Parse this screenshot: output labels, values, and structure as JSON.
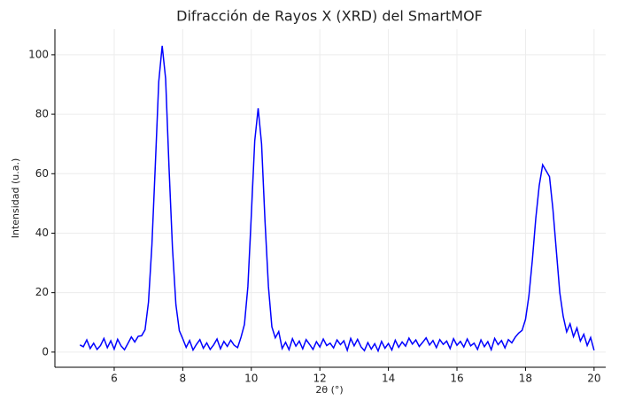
{
  "chart_data": {
    "type": "line",
    "title": "Difracción de Rayos X (XRD) del SmartMOF",
    "xlabel": "2θ (°)",
    "ylabel": "Intensidad (u.a.)",
    "xlim": [
      4.27,
      20.34
    ],
    "ylim": [
      -5.1,
      108.6
    ],
    "xticks": [
      6,
      8,
      10,
      12,
      14,
      16,
      18,
      20
    ],
    "yticks": [
      0,
      20,
      40,
      60,
      80,
      100
    ],
    "grid": true,
    "x": [
      5.0,
      5.1,
      5.2,
      5.3,
      5.4,
      5.5,
      5.6,
      5.7,
      5.8,
      5.9,
      6.0,
      6.1,
      6.2,
      6.3,
      6.4,
      6.5,
      6.6,
      6.7,
      6.8,
      6.9,
      7.0,
      7.1,
      7.2,
      7.3,
      7.4,
      7.5,
      7.6,
      7.7,
      7.8,
      7.9,
      8.0,
      8.1,
      8.2,
      8.3,
      8.4,
      8.5,
      8.6,
      8.7,
      8.8,
      8.9,
      9.0,
      9.1,
      9.2,
      9.3,
      9.4,
      9.5,
      9.6,
      9.7,
      9.8,
      9.9,
      10.0,
      10.1,
      10.2,
      10.3,
      10.4,
      10.5,
      10.6,
      10.7,
      10.8,
      10.9,
      11.0,
      11.1,
      11.2,
      11.3,
      11.4,
      11.5,
      11.6,
      11.7,
      11.8,
      11.9,
      12.0,
      12.1,
      12.2,
      12.3,
      12.4,
      12.5,
      12.6,
      12.7,
      12.8,
      12.9,
      13.0,
      13.1,
      13.2,
      13.3,
      13.4,
      13.5,
      13.6,
      13.7,
      13.8,
      13.9,
      14.0,
      14.1,
      14.2,
      14.3,
      14.4,
      14.5,
      14.6,
      14.7,
      14.8,
      14.9,
      15.0,
      15.1,
      15.2,
      15.3,
      15.4,
      15.5,
      15.6,
      15.7,
      15.8,
      15.9,
      16.0,
      16.1,
      16.2,
      16.3,
      16.4,
      16.5,
      16.6,
      16.7,
      16.8,
      16.9,
      17.0,
      17.1,
      17.2,
      17.3,
      17.4,
      17.5,
      17.6,
      17.7,
      17.8,
      17.9,
      18.0,
      18.1,
      18.2,
      18.3,
      18.4,
      18.5,
      18.6,
      18.7,
      18.8,
      18.9,
      19.0,
      19.1,
      19.2,
      19.3,
      19.4,
      19.5,
      19.6,
      19.7,
      19.8,
      19.9,
      20.0
    ],
    "series": [
      {
        "color": "#0000ff",
        "values": [
          2.4,
          1.8,
          4.1,
          1.2,
          3.0,
          0.9,
          2.2,
          4.6,
          1.5,
          3.8,
          1.0,
          4.3,
          2.1,
          0.8,
          2.9,
          5.1,
          3.4,
          5.3,
          5.5,
          7.5,
          16.8,
          36,
          63,
          91,
          103,
          92,
          62,
          35,
          16,
          7.2,
          4.5,
          1.6,
          3.9,
          0.7,
          2.6,
          4.2,
          1.3,
          3.1,
          0.9,
          2.4,
          4.4,
          1.1,
          3.6,
          1.9,
          4.0,
          2.3,
          1.5,
          5.0,
          9.3,
          22,
          46,
          71,
          82,
          70,
          44,
          22,
          8.5,
          4.8,
          6.9,
          1.2,
          3.3,
          0.8,
          4.5,
          2.0,
          3.7,
          1.1,
          4.2,
          2.6,
          0.9,
          3.5,
          1.7,
          4.4,
          2.2,
          3.0,
          1.4,
          4.1,
          2.5,
          3.8,
          0.6,
          4.6,
          2.1,
          4.3,
          1.8,
          0.5,
          3.2,
          1.0,
          2.8,
          0.4,
          3.6,
          1.3,
          2.9,
          0.7,
          4.0,
          1.6,
          3.4,
          2.0,
          4.7,
          2.7,
          4.1,
          1.9,
          3.3,
          4.8,
          2.4,
          3.9,
          1.5,
          4.2,
          2.6,
          3.7,
          1.2,
          4.5,
          2.3,
          3.6,
          1.7,
          4.4,
          2.1,
          3.0,
          0.9,
          4.1,
          1.8,
          3.5,
          0.8,
          4.6,
          2.5,
          3.9,
          1.4,
          4.2,
          3.1,
          5.0,
          6.4,
          7.3,
          11,
          19,
          31,
          45,
          56,
          63,
          61,
          59,
          48,
          34,
          20,
          12,
          6.8,
          9.5,
          5.2,
          8.1,
          3.7,
          6.0,
          2.2,
          4.9,
          0.6
        ]
      }
    ]
  }
}
